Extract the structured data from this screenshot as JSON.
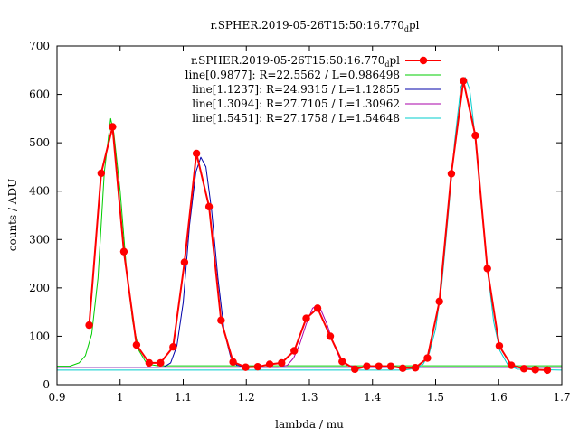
{
  "chart_data": {
    "type": "line",
    "title": "r.SPHER.2019-05-26T15:50:16.770",
    "title_sub": "d",
    "title_suffix": "pl",
    "xlabel": "lambda / mu",
    "ylabel": "counts / ADU",
    "xlim": [
      0.9,
      1.7
    ],
    "ylim": [
      0,
      700
    ],
    "x_ticks": [
      "0.9",
      "1",
      "1.1",
      "1.2",
      "1.3",
      "1.4",
      "1.5",
      "1.6",
      "1.7"
    ],
    "y_ticks": [
      "0",
      "100",
      "200",
      "300",
      "400",
      "500",
      "600",
      "700"
    ],
    "grid": false,
    "legend_position": "top-right",
    "series": [
      {
        "name": "r.SPHER.2019-05-26T15:50:16.770",
        "name_sub": "d",
        "name_suffix": "pl",
        "color": "#ff0000",
        "marker": "circle",
        "x": [
          0.951,
          0.97,
          0.988,
          1.006,
          1.026,
          1.046,
          1.064,
          1.084,
          1.102,
          1.121,
          1.141,
          1.16,
          1.179,
          1.199,
          1.218,
          1.237,
          1.256,
          1.276,
          1.295,
          1.313,
          1.333,
          1.352,
          1.372,
          1.391,
          1.41,
          1.429,
          1.448,
          1.468,
          1.487,
          1.506,
          1.525,
          1.544,
          1.563,
          1.582,
          1.601,
          1.62,
          1.64,
          1.658,
          1.677
        ],
        "y": [
          123,
          437,
          533,
          275,
          82,
          45,
          45,
          78,
          253,
          478,
          368,
          133,
          47,
          36,
          37,
          42,
          45,
          70,
          137,
          158,
          100,
          48,
          32,
          38,
          38,
          38,
          34,
          35,
          55,
          172,
          436,
          628,
          515,
          240,
          80,
          40,
          33,
          31,
          30
        ]
      },
      {
        "name": "line[0.9877]: R=22.5562 / L=0.986498",
        "color": "#00cc00",
        "x": [
          0.9,
          0.92,
          0.935,
          0.945,
          0.955,
          0.965,
          0.975,
          0.985,
          0.99,
          1.0,
          1.01,
          1.02,
          1.03,
          1.04,
          1.05,
          1.06,
          1.1,
          1.3,
          1.5,
          1.7
        ],
        "y": [
          38,
          38,
          45,
          60,
          105,
          220,
          440,
          550,
          520,
          400,
          240,
          130,
          70,
          48,
          41,
          39,
          39,
          39,
          39,
          39
        ]
      },
      {
        "name": "line[1.1237]: R=24.9315 / L=1.12855",
        "color": "#0000aa",
        "x": [
          0.9,
          1.06,
          1.07,
          1.08,
          1.09,
          1.1,
          1.11,
          1.12,
          1.128,
          1.136,
          1.145,
          1.155,
          1.165,
          1.175,
          1.185,
          1.2,
          1.3,
          1.5,
          1.7
        ],
        "y": [
          36,
          36,
          37,
          45,
          80,
          170,
          330,
          440,
          470,
          450,
          360,
          220,
          110,
          58,
          40,
          36,
          36,
          36,
          36
        ]
      },
      {
        "name": "line[1.3094]: R=27.7105 / L=1.30962",
        "color": "#aa00aa",
        "x": [
          0.9,
          1.25,
          1.265,
          1.275,
          1.285,
          1.295,
          1.305,
          1.31,
          1.318,
          1.328,
          1.338,
          1.348,
          1.36,
          1.38,
          1.7
        ],
        "y": [
          36,
          36,
          40,
          55,
          85,
          125,
          158,
          162,
          155,
          125,
          85,
          55,
          40,
          36,
          36
        ]
      },
      {
        "name": "line[1.5451]: R=27.1758 / L=1.54648",
        "color": "#00cccc",
        "x": [
          0.9,
          1.45,
          1.47,
          1.48,
          1.49,
          1.5,
          1.51,
          1.52,
          1.53,
          1.54,
          1.547,
          1.554,
          1.562,
          1.572,
          1.582,
          1.592,
          1.602,
          1.615,
          1.63,
          1.7
        ],
        "y": [
          30,
          30,
          34,
          42,
          65,
          115,
          210,
          350,
          500,
          615,
          635,
          610,
          520,
          380,
          240,
          130,
          70,
          40,
          32,
          30
        ]
      }
    ]
  }
}
